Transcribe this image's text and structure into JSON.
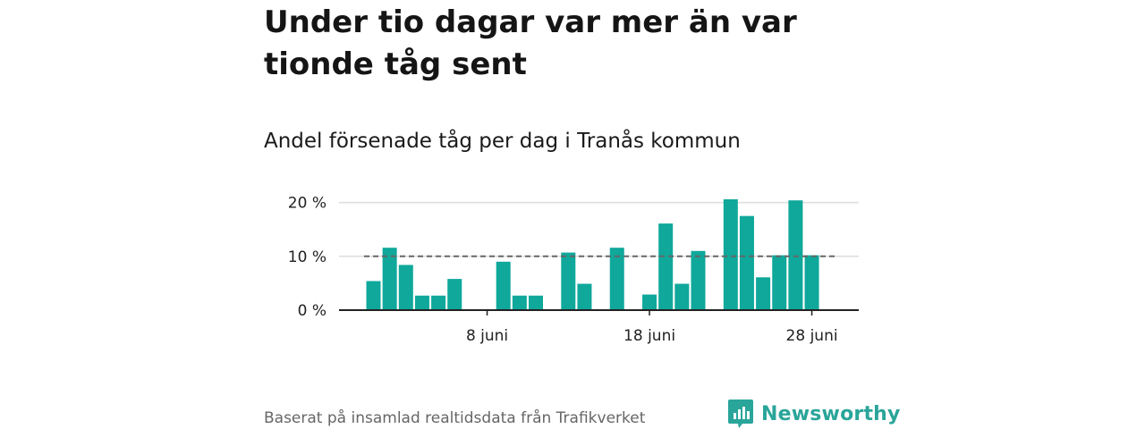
{
  "header": {
    "title": "Under tio dagar var mer än var tionde tåg sent",
    "subtitle": "Andel försenade tåg per dag i Tranås kommun"
  },
  "footer": {
    "source": "Baserat på insamlad realtidsdata från Trafikverket",
    "brand": "Newsworthy"
  },
  "colors": {
    "bar": "#0fa89b",
    "reference_line": "#666666",
    "grid": "#dddddd",
    "axis": "#222222",
    "brand": "#2aa59a"
  },
  "chart_data": {
    "type": "bar",
    "title": "Under tio dagar var mer än var tionde tåg sent",
    "subtitle": "Andel försenade tåg per dag i Tranås kommun",
    "x_start": "2023-06-01",
    "x": [
      "1 juni",
      "2 juni",
      "3 juni",
      "4 juni",
      "5 juni",
      "6 juni",
      "7 juni",
      "8 juni",
      "9 juni",
      "10 juni",
      "11 juni",
      "12 juni",
      "13 juni",
      "14 juni",
      "15 juni",
      "16 juni",
      "17 juni",
      "18 juni",
      "19 juni",
      "20 juni",
      "21 juni",
      "22 juni",
      "23 juni",
      "24 juni",
      "25 juni",
      "26 juni",
      "27 juni",
      "28 juni",
      "29 juni"
    ],
    "values": [
      5.4,
      11.6,
      8.4,
      2.7,
      2.7,
      5.8,
      0,
      0,
      9.0,
      2.7,
      2.7,
      0,
      10.7,
      4.9,
      0,
      11.6,
      0,
      2.9,
      16.1,
      4.9,
      11.0,
      0,
      20.6,
      17.5,
      6.1,
      10.2,
      20.4,
      10.2,
      null
    ],
    "reference_line": 10,
    "ylim": [
      0,
      20.6
    ],
    "y_ticks": [
      "0 %",
      "10 %",
      "20 %"
    ],
    "x_tick_labels": [
      "8 juni",
      "18 juni",
      "28 juni"
    ],
    "xlabel": "",
    "ylabel": "",
    "grid": true
  }
}
